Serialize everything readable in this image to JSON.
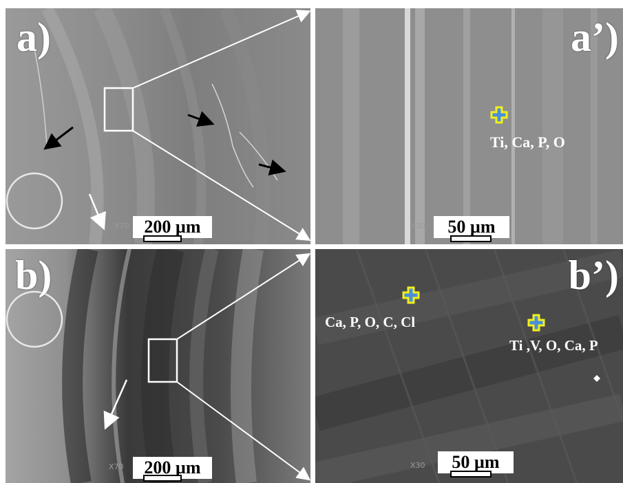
{
  "panels": {
    "a": {
      "label": "a)",
      "scale_bar": "200 µm",
      "magnification": "X70"
    },
    "a2": {
      "label": "a’)",
      "scale_bar": "50 µm",
      "magnification": "X30",
      "elements": [
        "Ti,  Ca, P, O"
      ]
    },
    "b": {
      "label": "b)",
      "scale_bar": "200 µm",
      "magnification": "X70"
    },
    "b2": {
      "label": "b’)",
      "scale_bar": "50 µm",
      "magnification": "X30",
      "elements": [
        "Ca, P, O, C, Cl",
        "Ti ,V, O, Ca, P"
      ]
    }
  },
  "colors": {
    "marker_fill": "#4a8fd6",
    "marker_outline": "#f2ef1a",
    "arrow_black": "#000000"
  }
}
